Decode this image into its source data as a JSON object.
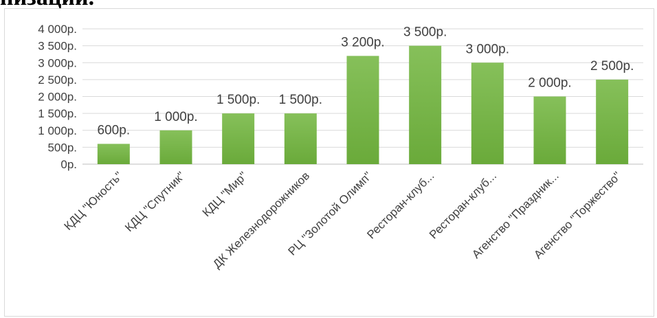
{
  "heading_fragment": "низации.",
  "chart_data": {
    "type": "bar",
    "title": "",
    "xlabel": "",
    "ylabel": "",
    "ylim": [
      0,
      4000
    ],
    "yticks": [
      0,
      500,
      1000,
      1500,
      2000,
      2500,
      3000,
      3500,
      4000
    ],
    "ytick_labels": [
      "0р.",
      "500р.",
      "1 000р.",
      "1 500р.",
      "2 000р.",
      "2 500р.",
      "3 000р.",
      "3 500р.",
      "4 000р."
    ],
    "grid": true,
    "legend": "none",
    "bar_color": "#6aaa3a",
    "bar_color_light": "#86c05a",
    "categories": [
      "КДЦ \"Юность\"",
      "КДЦ \"Спутник\"",
      "КДЦ \"Мир\"",
      "ДК Железнодорожников",
      "РЦ \"Золотой Олимп\"",
      "Ресторан-клуб...",
      "Ресторан-клуб...",
      "Агенство \"Праздник...",
      "Агенство \"Торжество\""
    ],
    "values": [
      600,
      1000,
      1500,
      1500,
      3200,
      3500,
      3000,
      2000,
      2500
    ],
    "data_labels": [
      "600р.",
      "1 000р.",
      "1 500р.",
      "1 500р.",
      "3 200р.",
      "3 500р.",
      "3 000р.",
      "2 000р.",
      "2 500р."
    ]
  }
}
